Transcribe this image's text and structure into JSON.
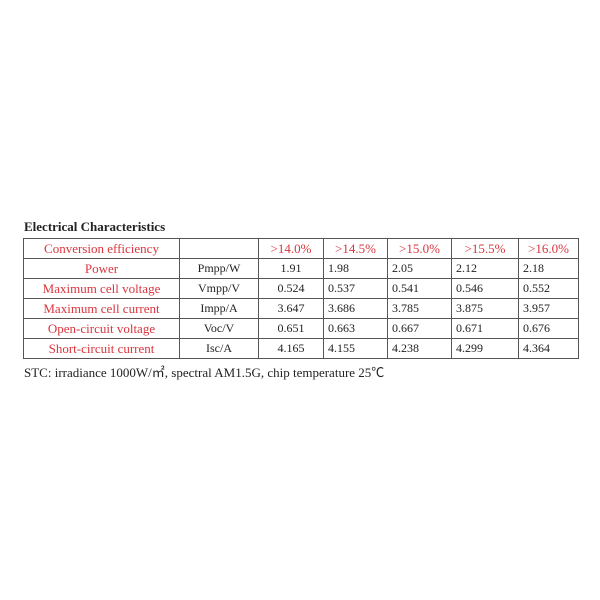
{
  "title": "Electrical Characteristics",
  "header": {
    "label": "Conversion efficiency",
    "unit": "",
    "values": [
      ">14.0%",
      ">14.5%",
      ">15.0%",
      ">15.5%",
      ">16.0%"
    ]
  },
  "rows": [
    {
      "label": "Power",
      "unit": "Pmpp/W",
      "values": [
        "1.91",
        "1.98",
        "2.05",
        "2.12",
        "2.18"
      ]
    },
    {
      "label": "Maximum cell voltage",
      "unit": "Vmpp/V",
      "values": [
        "0.524",
        "0.537",
        "0.541",
        "0.546",
        "0.552"
      ]
    },
    {
      "label": "Maximum cell current",
      "unit": "Impp/A",
      "values": [
        "3.647",
        "3.686",
        "3.785",
        "3.875",
        "3.957"
      ]
    },
    {
      "label": "Open-circuit voltage",
      "unit": "Voc/V",
      "values": [
        "0.651",
        "0.663",
        "0.667",
        "0.671",
        "0.676"
      ]
    },
    {
      "label": "Short-circuit current",
      "unit": "Isc/A",
      "values": [
        "4.165",
        "4.155",
        "4.238",
        "4.299",
        "4.364"
      ]
    }
  ],
  "note": "STC: irradiance 1000W/㎡, spectral AM1.5G, chip temperature 25℃",
  "colors": {
    "label_red": "#d9363e",
    "border": "#555555"
  }
}
